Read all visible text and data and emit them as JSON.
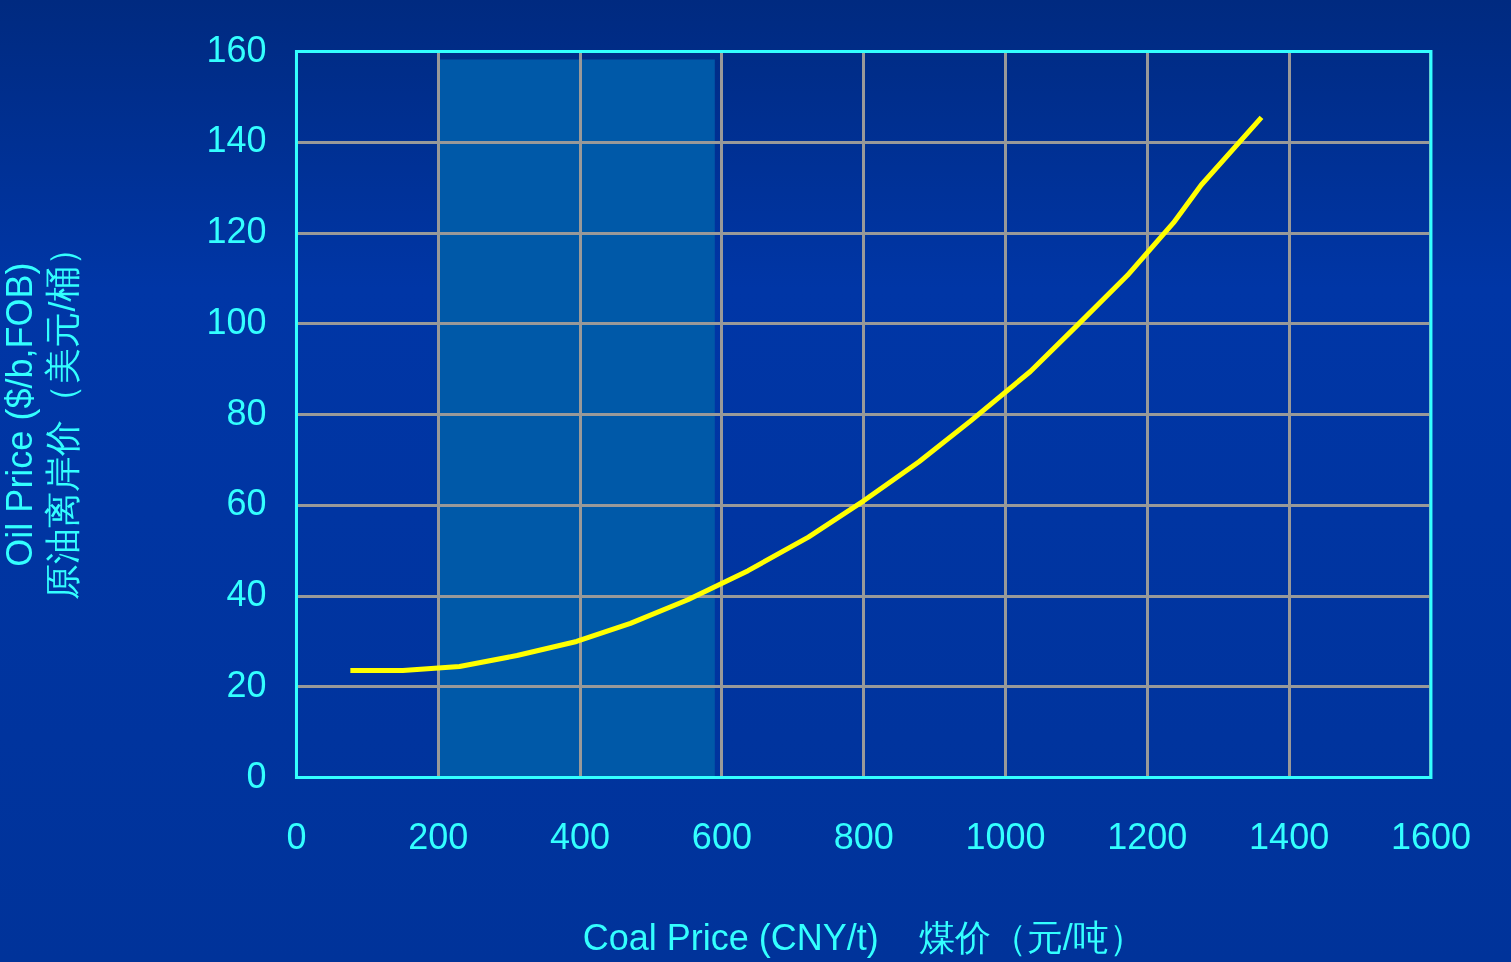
{
  "chart_data": {
    "type": "line",
    "xlabel": "Coal Price (CNY/t)    煤价（元/吨）",
    "ylabel": "Oil Price ($/b,FOB)\n原油离岸价（美元/桶）",
    "xlim": [
      0,
      1600
    ],
    "xticks": [
      0,
      200,
      400,
      600,
      800,
      1000,
      1200,
      1400,
      1600
    ],
    "ylim": [
      0,
      160
    ],
    "yticks": [
      0,
      20,
      40,
      60,
      80,
      100,
      120,
      140,
      160
    ],
    "grid": true,
    "legend": false,
    "marker": "none",
    "line_style": "solid",
    "bands": [
      {
        "axis": "x",
        "from": 200,
        "to": 590,
        "color": "#0059a8"
      }
    ],
    "series": [
      {
        "color": "#ffff00",
        "x": [
          76,
          150,
          230,
          311,
          395,
          471,
          552,
          637,
          722,
          800,
          878,
          950,
          1035,
          1100,
          1172,
          1237,
          1276,
          1361
        ],
        "values": [
          23.6,
          23.6,
          24.5,
          26.9,
          30,
          34,
          39.2,
          45.6,
          53,
          61,
          69.6,
          78.5,
          89.5,
          99.5,
          110.7,
          122.3,
          130.6,
          145.5
        ]
      }
    ]
  }
}
